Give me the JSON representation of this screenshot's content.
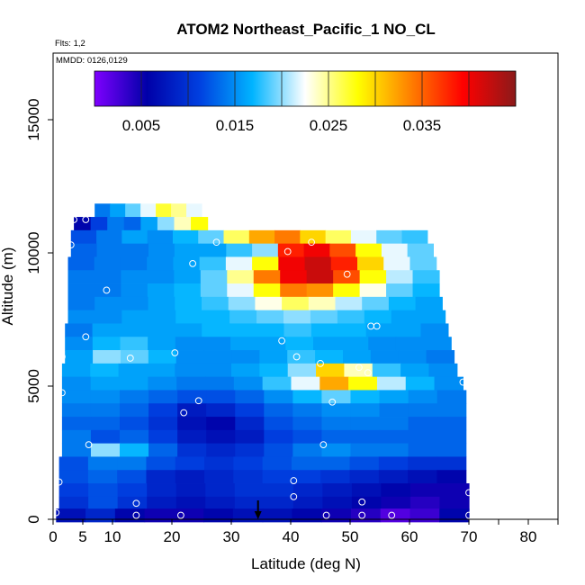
{
  "chart_data": {
    "type": "heatmap",
    "title": "ATOM2 Northeast_Pacific_1 NO_CL",
    "flights_label": "Flts: 1,2",
    "dates_label": "MMDD: 0126,0129",
    "xlabel": "Latitude (deg N)",
    "ylabel": "Altitude (m)",
    "xlim": [
      0,
      85
    ],
    "ylim": [
      0,
      17500
    ],
    "x_ticks": [
      0,
      5,
      10,
      20,
      30,
      40,
      50,
      60,
      70,
      80
    ],
    "x_minor_ticks": [
      75,
      85
    ],
    "y_ticks": [
      0,
      5000,
      10000,
      15000
    ],
    "colorbar": {
      "range": [
        0,
        0.045
      ],
      "tick_values": [
        0.005,
        0.015,
        0.025,
        0.035
      ],
      "tick_labels": [
        "0.005",
        "0.015",
        "0.025",
        "0.035"
      ],
      "colors": [
        "#7f00ff",
        "#0000a8",
        "#0040e0",
        "#00b4ff",
        "#ffffff",
        "#ffff00",
        "#ff8000",
        "#ff0000",
        "#8b1a1a"
      ]
    },
    "arrow_latitude": 34.5,
    "heatmap_rows": [
      {
        "alt": 11600,
        "lat_min": 7,
        "lat_max": 25,
        "values": [
          0.014,
          0.016,
          0.019,
          0.022,
          0.027,
          0.025,
          0.022
        ]
      },
      {
        "alt": 11100,
        "lat_min": 3.5,
        "lat_max": 26,
        "values": [
          0.006,
          0.011,
          0.014,
          0.013,
          0.016,
          0.02,
          0.024,
          0.028
        ]
      },
      {
        "alt": 10600,
        "lat_min": 3,
        "lat_max": 63,
        "values": [
          0.012,
          0.014,
          0.016,
          0.015,
          0.017,
          0.019,
          0.026,
          0.032,
          0.034,
          0.03,
          0.026,
          0.022,
          0.019,
          0.018
        ]
      },
      {
        "alt": 10100,
        "lat_min": 3,
        "lat_max": 64,
        "values": [
          0.013,
          0.014,
          0.014,
          0.015,
          0.016,
          0.016,
          0.018,
          0.02,
          0.038,
          0.04,
          0.036,
          0.028,
          0.022,
          0.019
        ]
      },
      {
        "alt": 9600,
        "lat_min": 2.5,
        "lat_max": 64.5,
        "values": [
          0.013,
          0.014,
          0.014,
          0.015,
          0.016,
          0.018,
          0.022,
          0.028,
          0.04,
          0.042,
          0.038,
          0.03,
          0.022,
          0.019
        ]
      },
      {
        "alt": 9100,
        "lat_min": 2.5,
        "lat_max": 65,
        "values": [
          0.014,
          0.014,
          0.015,
          0.015,
          0.016,
          0.019,
          0.025,
          0.034,
          0.04,
          0.042,
          0.036,
          0.028,
          0.021,
          0.018
        ]
      },
      {
        "alt": 8600,
        "lat_min": 2.5,
        "lat_max": 65,
        "values": [
          0.014,
          0.014,
          0.015,
          0.016,
          0.017,
          0.019,
          0.022,
          0.028,
          0.034,
          0.033,
          0.028,
          0.023,
          0.019,
          0.017
        ]
      },
      {
        "alt": 8100,
        "lat_min": 2.5,
        "lat_max": 65.5,
        "values": [
          0.014,
          0.015,
          0.015,
          0.016,
          0.017,
          0.018,
          0.02,
          0.023,
          0.026,
          0.024,
          0.021,
          0.019,
          0.017,
          0.016
        ]
      },
      {
        "alt": 7600,
        "lat_min": 2.5,
        "lat_max": 66,
        "values": [
          0.015,
          0.015,
          0.016,
          0.016,
          0.017,
          0.017,
          0.018,
          0.019,
          0.02,
          0.019,
          0.018,
          0.017,
          0.016,
          0.016
        ]
      },
      {
        "alt": 7100,
        "lat_min": 2,
        "lat_max": 66.5,
        "values": [
          0.014,
          0.016,
          0.016,
          0.016,
          0.016,
          0.017,
          0.017,
          0.017,
          0.018,
          0.017,
          0.017,
          0.016,
          0.016,
          0.015
        ]
      },
      {
        "alt": 6600,
        "lat_min": 2,
        "lat_max": 67,
        "values": [
          0.015,
          0.017,
          0.018,
          0.016,
          0.015,
          0.015,
          0.016,
          0.016,
          0.017,
          0.016,
          0.016,
          0.015,
          0.015,
          0.015
        ]
      },
      {
        "alt": 6100,
        "lat_min": 2,
        "lat_max": 67.5,
        "values": [
          0.016,
          0.02,
          0.019,
          0.017,
          0.015,
          0.015,
          0.015,
          0.016,
          0.018,
          0.017,
          0.016,
          0.015,
          0.015,
          0.014
        ]
      },
      {
        "alt": 5600,
        "lat_min": 1.5,
        "lat_max": 68,
        "values": [
          0.016,
          0.017,
          0.016,
          0.016,
          0.015,
          0.015,
          0.016,
          0.017,
          0.02,
          0.03,
          0.024,
          0.018,
          0.016,
          0.015
        ]
      },
      {
        "alt": 5100,
        "lat_min": 1.5,
        "lat_max": 69,
        "values": [
          0.015,
          0.016,
          0.016,
          0.015,
          0.014,
          0.014,
          0.015,
          0.018,
          0.022,
          0.032,
          0.028,
          0.021,
          0.017,
          0.015
        ]
      },
      {
        "alt": 4600,
        "lat_min": 1.5,
        "lat_max": 69.5,
        "values": [
          0.015,
          0.015,
          0.014,
          0.013,
          0.012,
          0.012,
          0.013,
          0.015,
          0.017,
          0.019,
          0.017,
          0.016,
          0.015,
          0.014
        ]
      },
      {
        "alt": 4100,
        "lat_min": 1.5,
        "lat_max": 69.5,
        "values": [
          0.014,
          0.014,
          0.013,
          0.011,
          0.008,
          0.009,
          0.011,
          0.013,
          0.014,
          0.015,
          0.015,
          0.014,
          0.014,
          0.014
        ]
      },
      {
        "alt": 3600,
        "lat_min": 1.5,
        "lat_max": 69.5,
        "values": [
          0.013,
          0.013,
          0.012,
          0.01,
          0.007,
          0.006,
          0.009,
          0.012,
          0.013,
          0.014,
          0.014,
          0.014,
          0.013,
          0.013
        ]
      },
      {
        "alt": 3100,
        "lat_min": 1.5,
        "lat_max": 69.5,
        "values": [
          0.014,
          0.012,
          0.013,
          0.011,
          0.008,
          0.007,
          0.008,
          0.011,
          0.012,
          0.013,
          0.013,
          0.013,
          0.013,
          0.013
        ]
      },
      {
        "alt": 2600,
        "lat_min": 1.5,
        "lat_max": 69.5,
        "values": [
          0.014,
          0.02,
          0.017,
          0.013,
          0.01,
          0.009,
          0.01,
          0.012,
          0.014,
          0.015,
          0.014,
          0.014,
          0.013,
          0.013
        ]
      },
      {
        "alt": 2100,
        "lat_min": 1,
        "lat_max": 69.5,
        "values": [
          0.012,
          0.014,
          0.014,
          0.012,
          0.011,
          0.01,
          0.011,
          0.012,
          0.013,
          0.013,
          0.012,
          0.011,
          0.01,
          0.01
        ]
      },
      {
        "alt": 1600,
        "lat_min": 1,
        "lat_max": 69.5,
        "values": [
          0.012,
          0.013,
          0.012,
          0.009,
          0.008,
          0.009,
          0.01,
          0.011,
          0.011,
          0.01,
          0.009,
          0.008,
          0.007,
          0.006
        ]
      },
      {
        "alt": 1100,
        "lat_min": 1,
        "lat_max": 70,
        "values": [
          0.011,
          0.012,
          0.011,
          0.009,
          0.008,
          0.009,
          0.01,
          0.01,
          0.009,
          0.008,
          0.007,
          0.006,
          0.005,
          0.005
        ]
      },
      {
        "alt": 600,
        "lat_min": 1,
        "lat_max": 70,
        "values": [
          0.01,
          0.012,
          0.01,
          0.008,
          0.007,
          0.008,
          0.009,
          0.009,
          0.008,
          0.007,
          0.006,
          0.005,
          0.004,
          0.005
        ]
      },
      {
        "alt": 150,
        "lat_min": 0.5,
        "lat_max": 70,
        "values": [
          0.007,
          0.009,
          0.006,
          0.005,
          0.005,
          0.006,
          0.007,
          0.007,
          0.006,
          0.005,
          0.004,
          0.002,
          0.003,
          0.006
        ]
      }
    ],
    "points": [
      {
        "x": 3.5,
        "y": 11250
      },
      {
        "x": 5.5,
        "y": 11250
      },
      {
        "x": 3,
        "y": 10300
      },
      {
        "x": 27.5,
        "y": 10400
      },
      {
        "x": 43.5,
        "y": 10400
      },
      {
        "x": 39.5,
        "y": 10050
      },
      {
        "x": 23.5,
        "y": 9600
      },
      {
        "x": 49.5,
        "y": 9200
      },
      {
        "x": 9,
        "y": 8600
      },
      {
        "x": 53.5,
        "y": 7250
      },
      {
        "x": 54.5,
        "y": 7250
      },
      {
        "x": 38.5,
        "y": 6700
      },
      {
        "x": 5.5,
        "y": 6850
      },
      {
        "x": 20.5,
        "y": 6250
      },
      {
        "x": 13,
        "y": 6050
      },
      {
        "x": 1.5,
        "y": 6100
      },
      {
        "x": 41,
        "y": 6100
      },
      {
        "x": 45,
        "y": 5850
      },
      {
        "x": 51.5,
        "y": 5700
      },
      {
        "x": 53,
        "y": 5500
      },
      {
        "x": 69,
        "y": 5150
      },
      {
        "x": 1.5,
        "y": 4750
      },
      {
        "x": 24.5,
        "y": 4450
      },
      {
        "x": 47,
        "y": 4400
      },
      {
        "x": 22,
        "y": 4000
      },
      {
        "x": 6,
        "y": 2800
      },
      {
        "x": 45.5,
        "y": 2800
      },
      {
        "x": 40.5,
        "y": 1450
      },
      {
        "x": 1,
        "y": 1400
      },
      {
        "x": 70,
        "y": 1000
      },
      {
        "x": 40.5,
        "y": 850
      },
      {
        "x": 14,
        "y": 600
      },
      {
        "x": 52,
        "y": 650
      },
      {
        "x": 0.5,
        "y": 250
      },
      {
        "x": 14,
        "y": 150
      },
      {
        "x": 21.5,
        "y": 150
      },
      {
        "x": 46,
        "y": 150
      },
      {
        "x": 52,
        "y": 150
      },
      {
        "x": 57,
        "y": 150
      },
      {
        "x": 70,
        "y": 150
      }
    ]
  }
}
